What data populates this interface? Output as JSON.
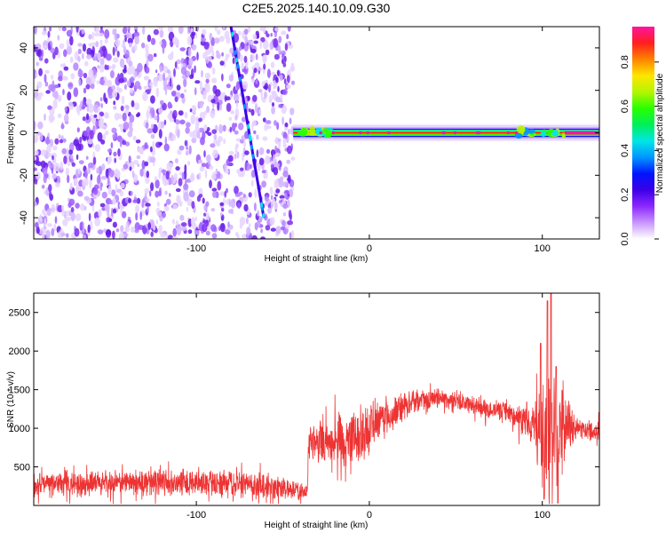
{
  "title": "C2E5.2025.140.10.09.G30",
  "chart_data": [
    {
      "type": "heatmap",
      "xlabel": "Height of straight line (km)",
      "ylabel": "Frequency (Hz)",
      "xlim": [
        -194,
        133
      ],
      "ylim": [
        -50,
        50
      ],
      "x_ticks": [
        -100,
        0,
        100
      ],
      "y_ticks": [
        -40,
        -20,
        0,
        20,
        40
      ],
      "noise_region_x": [
        -194,
        -44
      ],
      "carrier": {
        "x_start": -44,
        "x_end": 133,
        "frequency": 0
      },
      "drifting_trace": {
        "x_start": -80,
        "x_end": -61,
        "freq_start": 50,
        "freq_end": -40
      },
      "colorbar": {
        "label": "Normalized spectral amplitude",
        "ticks": [
          "0.0",
          "0.2",
          "0.4",
          "0.6",
          "0.8"
        ],
        "range": [
          0,
          0.96
        ],
        "colors": [
          "#ffffff",
          "#c896ff",
          "#8c28ff",
          "#3c00e6",
          "#0014ff",
          "#0096ff",
          "#00e6e6",
          "#00f05a",
          "#28ff00",
          "#b4f500",
          "#ffe600",
          "#ff8200",
          "#ff1e1e",
          "#ff14a0"
        ]
      }
    },
    {
      "type": "line",
      "xlabel": "Height of straight line (km)",
      "ylabel": "SNR (10 * v/v)",
      "xlim": [
        -194,
        133
      ],
      "ylim": [
        0,
        2750
      ],
      "x_ticks": [
        -100,
        0,
        100
      ],
      "y_ticks": [
        500,
        1000,
        1500,
        2000,
        2500
      ],
      "color": "#ee3333",
      "profile": [
        {
          "x": -194,
          "y": 280,
          "spread": 180
        },
        {
          "x": -150,
          "y": 290,
          "spread": 190
        },
        {
          "x": -100,
          "y": 300,
          "spread": 200
        },
        {
          "x": -60,
          "y": 270,
          "spread": 190
        },
        {
          "x": -36,
          "y": 160,
          "spread": 120
        },
        {
          "x": -35,
          "y": 850,
          "spread": 300
        },
        {
          "x": -20,
          "y": 820,
          "spread": 420
        },
        {
          "x": -5,
          "y": 900,
          "spread": 450
        },
        {
          "x": 10,
          "y": 1150,
          "spread": 300
        },
        {
          "x": 25,
          "y": 1350,
          "spread": 160
        },
        {
          "x": 40,
          "y": 1400,
          "spread": 140
        },
        {
          "x": 60,
          "y": 1300,
          "spread": 140
        },
        {
          "x": 80,
          "y": 1200,
          "spread": 140
        },
        {
          "x": 95,
          "y": 1050,
          "spread": 300
        },
        {
          "x": 100,
          "y": 800,
          "spread": 900
        },
        {
          "x": 107,
          "y": 900,
          "spread": 1400
        },
        {
          "x": 112,
          "y": 1050,
          "spread": 600
        },
        {
          "x": 120,
          "y": 1000,
          "spread": 150
        },
        {
          "x": 133,
          "y": 950,
          "spread": 150
        }
      ],
      "peaks": [
        {
          "x": 99,
          "y": 2100
        },
        {
          "x": 103,
          "y": 2650
        },
        {
          "x": 105,
          "y": 2750
        },
        {
          "x": 108,
          "y": 1800
        }
      ],
      "dips": [
        {
          "x": 101,
          "y": 80
        },
        {
          "x": 109,
          "y": 30
        }
      ]
    }
  ]
}
